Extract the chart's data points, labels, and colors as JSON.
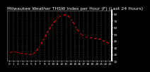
{
  "title": "Milwaukee Weather THSW Index per Hour (F) (Last 24 Hours)",
  "x": [
    0,
    1,
    2,
    3,
    4,
    5,
    6,
    7,
    8,
    9,
    10,
    11,
    12,
    13,
    14,
    15,
    16,
    17,
    18,
    19,
    20,
    21,
    22,
    23
  ],
  "y": [
    22,
    24,
    22,
    21,
    20,
    19,
    23,
    32,
    44,
    56,
    66,
    74,
    78,
    79,
    74,
    63,
    52,
    47,
    45,
    44,
    43,
    42,
    38,
    36
  ],
  "line_color": "#ff0000",
  "marker_color": "#000000",
  "bg_color": "#000000",
  "plot_bg": "#000000",
  "grid_color": "#888888",
  "title_color": "#ffffff",
  "tick_color": "#ffffff",
  "ymin": 10,
  "ymax": 85,
  "ytick_vals": [
    10,
    20,
    30,
    40,
    50,
    60,
    70,
    80
  ],
  "ytick_labels": [
    "10",
    "20",
    "30",
    "40",
    "50",
    "60",
    "70",
    "80"
  ],
  "title_fontsize": 4.5,
  "tick_fontsize": 3.0
}
